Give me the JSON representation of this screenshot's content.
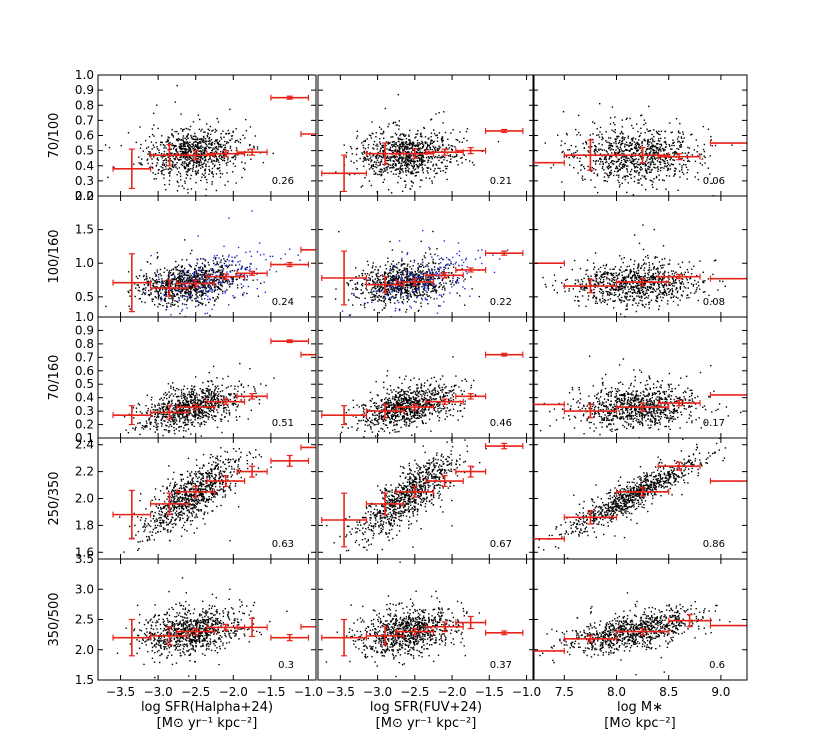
{
  "figure": {
    "colors": {
      "points": "#000000",
      "highlight_points": "#1f2fd6",
      "bins": "#e8241a"
    },
    "columns": [
      {
        "xlabel": "log SFR(Halpha+24)",
        "xunit": "[M⊙ yr⁻¹ kpc⁻²]"
      },
      {
        "xlabel": "log SFR(FUV+24)",
        "xunit": "[M⊙ yr⁻¹ kpc⁻²]"
      },
      {
        "xlabel": "log M∗",
        "xunit": "[M⊙ kpc⁻²]"
      }
    ]
  },
  "chart_data": [
    {
      "type": "scatter",
      "row_label": "70/100",
      "xlabel": "log SFR(Halpha+24)",
      "xlim": [
        -3.8,
        -0.9
      ],
      "ylabel": "70/100",
      "ylim": [
        0.2,
        1.0
      ],
      "yticks": [
        "0.2",
        "0.3",
        "0.4",
        "0.5",
        "0.6",
        "0.7",
        "0.8",
        "0.9",
        "1.0"
      ],
      "xticks": [
        "-3.5",
        "-3.0",
        "-2.5",
        "-2.0",
        "-1.5",
        "-1.0"
      ],
      "correlation": "0.26",
      "cloud": {
        "x_mean": -2.55,
        "x_sd": 0.33,
        "y_mean": 0.48,
        "y_sd": 0.08,
        "slope": 0.03,
        "n": 900
      },
      "binned": [
        {
          "x": -3.35,
          "xerr": 0.25,
          "y": 0.38,
          "yerr": 0.13
        },
        {
          "x": -2.85,
          "xerr": 0.25,
          "y": 0.47,
          "yerr": 0.07
        },
        {
          "x": -2.5,
          "xerr": 0.25,
          "y": 0.47,
          "yerr": 0.03
        },
        {
          "x": -2.1,
          "xerr": 0.25,
          "y": 0.48,
          "yerr": 0.02
        },
        {
          "x": -1.75,
          "xerr": 0.2,
          "y": 0.49,
          "yerr": 0.02
        },
        {
          "x": -1.25,
          "xerr": 0.25,
          "y": 0.85,
          "yerr": 0.01
        },
        {
          "x": -0.95,
          "xerr": 0.15,
          "y": 0.61,
          "yerr": 0.0
        }
      ]
    },
    {
      "type": "scatter",
      "row_label": "70/100",
      "xlabel": "log SFR(FUV+24)",
      "xlim": [
        -3.8,
        -0.9
      ],
      "ylabel": "70/100",
      "ylim": [
        0.2,
        1.0
      ],
      "correlation": "0.21",
      "cloud": {
        "x_mean": -2.6,
        "x_sd": 0.32,
        "y_mean": 0.47,
        "y_sd": 0.08,
        "slope": 0.02,
        "n": 900
      },
      "binned": [
        {
          "x": -3.45,
          "xerr": 0.3,
          "y": 0.35,
          "yerr": 0.12
        },
        {
          "x": -2.9,
          "xerr": 0.25,
          "y": 0.48,
          "yerr": 0.07
        },
        {
          "x": -2.5,
          "xerr": 0.25,
          "y": 0.48,
          "yerr": 0.03
        },
        {
          "x": -2.1,
          "xerr": 0.25,
          "y": 0.49,
          "yerr": 0.02
        },
        {
          "x": -1.75,
          "xerr": 0.2,
          "y": 0.5,
          "yerr": 0.02
        },
        {
          "x": -1.3,
          "xerr": 0.25,
          "y": 0.63,
          "yerr": 0.01
        }
      ]
    },
    {
      "type": "scatter",
      "row_label": "70/100",
      "xlabel": "log M∗",
      "xlim": [
        7.2,
        9.25
      ],
      "ylabel": "70/100",
      "ylim": [
        0.2,
        1.0
      ],
      "xticks": [
        "7.5",
        "8.0",
        "8.5",
        "9.0"
      ],
      "correlation": "0.06",
      "cloud": {
        "x_mean": 8.2,
        "x_sd": 0.3,
        "y_mean": 0.47,
        "y_sd": 0.09,
        "slope": 0.0,
        "n": 900
      },
      "binned": [
        {
          "x": 7.35,
          "xerr": 0.15,
          "y": 0.42,
          "yerr": 0.0
        },
        {
          "x": 7.75,
          "xerr": 0.25,
          "y": 0.47,
          "yerr": 0.1
        },
        {
          "x": 8.25,
          "xerr": 0.25,
          "y": 0.47,
          "yerr": 0.05
        },
        {
          "x": 8.6,
          "xerr": 0.2,
          "y": 0.46,
          "yerr": 0.02
        },
        {
          "x": 9.1,
          "xerr": 0.2,
          "y": 0.55,
          "yerr": 0.0
        }
      ]
    },
    {
      "type": "scatter",
      "row_label": "100/160",
      "xlabel": "log SFR(Halpha+24)",
      "xlim": [
        -3.8,
        -0.9
      ],
      "ylabel": "100/160",
      "ylim": [
        0.2,
        2.0
      ],
      "yticks": [
        "0.5",
        "1.0",
        "1.5",
        "2.0"
      ],
      "correlation": "0.24",
      "cloud": {
        "x_mean": -2.6,
        "x_sd": 0.33,
        "y_mean": 0.7,
        "y_sd": 0.14,
        "slope": 0.12,
        "n": 900
      },
      "highlight_cloud": {
        "x_mean": -2.3,
        "x_sd": 0.4,
        "y_mean": 0.75,
        "y_sd": 0.18,
        "slope": 0.35,
        "n": 220
      },
      "binned": [
        {
          "x": -3.35,
          "xerr": 0.25,
          "y": 0.71,
          "yerr": 0.43
        },
        {
          "x": -2.85,
          "xerr": 0.25,
          "y": 0.63,
          "yerr": 0.12
        },
        {
          "x": -2.5,
          "xerr": 0.25,
          "y": 0.7,
          "yerr": 0.05
        },
        {
          "x": -2.1,
          "xerr": 0.25,
          "y": 0.8,
          "yerr": 0.04
        },
        {
          "x": -1.75,
          "xerr": 0.2,
          "y": 0.85,
          "yerr": 0.03
        },
        {
          "x": -1.25,
          "xerr": 0.25,
          "y": 0.98,
          "yerr": 0.03
        },
        {
          "x": -0.95,
          "xerr": 0.15,
          "y": 1.2,
          "yerr": 0.0
        }
      ]
    },
    {
      "type": "scatter",
      "row_label": "100/160",
      "xlabel": "log SFR(FUV+24)",
      "xlim": [
        -3.8,
        -0.9
      ],
      "ylabel": "100/160",
      "ylim": [
        0.2,
        2.0
      ],
      "correlation": "0.22",
      "cloud": {
        "x_mean": -2.65,
        "x_sd": 0.32,
        "y_mean": 0.7,
        "y_sd": 0.14,
        "slope": 0.12,
        "n": 900
      },
      "highlight_cloud": {
        "x_mean": -2.35,
        "x_sd": 0.4,
        "y_mean": 0.75,
        "y_sd": 0.18,
        "slope": 0.35,
        "n": 220
      },
      "binned": [
        {
          "x": -3.45,
          "xerr": 0.3,
          "y": 0.78,
          "yerr": 0.4
        },
        {
          "x": -2.9,
          "xerr": 0.25,
          "y": 0.68,
          "yerr": 0.12
        },
        {
          "x": -2.5,
          "xerr": 0.25,
          "y": 0.72,
          "yerr": 0.05
        },
        {
          "x": -2.1,
          "xerr": 0.25,
          "y": 0.82,
          "yerr": 0.04
        },
        {
          "x": -1.75,
          "xerr": 0.2,
          "y": 0.9,
          "yerr": 0.03
        },
        {
          "x": -1.3,
          "xerr": 0.25,
          "y": 1.15,
          "yerr": 0.03
        }
      ]
    },
    {
      "type": "scatter",
      "row_label": "100/160",
      "xlabel": "log M∗",
      "xlim": [
        7.2,
        9.25
      ],
      "ylabel": "100/160",
      "ylim": [
        0.2,
        2.0
      ],
      "correlation": "0.08",
      "cloud": {
        "x_mean": 8.2,
        "x_sd": 0.3,
        "y_mean": 0.7,
        "y_sd": 0.15,
        "slope": 0.05,
        "n": 900
      },
      "binned": [
        {
          "x": 7.35,
          "xerr": 0.15,
          "y": 1.0,
          "yerr": 0.0
        },
        {
          "x": 7.75,
          "xerr": 0.25,
          "y": 0.66,
          "yerr": 0.1
        },
        {
          "x": 8.25,
          "xerr": 0.25,
          "y": 0.72,
          "yerr": 0.05
        },
        {
          "x": 8.6,
          "xerr": 0.2,
          "y": 0.8,
          "yerr": 0.03
        },
        {
          "x": 9.1,
          "xerr": 0.2,
          "y": 0.77,
          "yerr": 0.0
        }
      ]
    },
    {
      "type": "scatter",
      "row_label": "70/160",
      "xlabel": "log SFR(Halpha+24)",
      "xlim": [
        -3.8,
        -0.9
      ],
      "ylabel": "70/160",
      "ylim": [
        0.1,
        1.0
      ],
      "yticks": [
        "0.1",
        "0.2",
        "0.3",
        "0.4",
        "0.5",
        "0.6",
        "0.7",
        "0.8",
        "0.9",
        "1.0"
      ],
      "correlation": "0.51",
      "cloud": {
        "x_mean": -2.55,
        "x_sd": 0.33,
        "y_mean": 0.33,
        "y_sd": 0.07,
        "slope": 0.12,
        "n": 900
      },
      "binned": [
        {
          "x": -3.35,
          "xerr": 0.25,
          "y": 0.27,
          "yerr": 0.07
        },
        {
          "x": -2.85,
          "xerr": 0.25,
          "y": 0.29,
          "yerr": 0.05
        },
        {
          "x": -2.5,
          "xerr": 0.25,
          "y": 0.33,
          "yerr": 0.02
        },
        {
          "x": -2.1,
          "xerr": 0.25,
          "y": 0.37,
          "yerr": 0.02
        },
        {
          "x": -1.75,
          "xerr": 0.2,
          "y": 0.41,
          "yerr": 0.02
        },
        {
          "x": -1.25,
          "xerr": 0.25,
          "y": 0.82,
          "yerr": 0.01
        },
        {
          "x": -0.95,
          "xerr": 0.15,
          "y": 0.72,
          "yerr": 0.0
        }
      ]
    },
    {
      "type": "scatter",
      "row_label": "70/160",
      "xlabel": "log SFR(FUV+24)",
      "xlim": [
        -3.8,
        -0.9
      ],
      "ylabel": "70/160",
      "ylim": [
        0.1,
        1.0
      ],
      "correlation": "0.46",
      "cloud": {
        "x_mean": -2.6,
        "x_sd": 0.32,
        "y_mean": 0.33,
        "y_sd": 0.07,
        "slope": 0.12,
        "n": 900
      },
      "binned": [
        {
          "x": -3.45,
          "xerr": 0.3,
          "y": 0.27,
          "yerr": 0.07
        },
        {
          "x": -2.9,
          "xerr": 0.25,
          "y": 0.3,
          "yerr": 0.05
        },
        {
          "x": -2.5,
          "xerr": 0.25,
          "y": 0.33,
          "yerr": 0.02
        },
        {
          "x": -2.1,
          "xerr": 0.25,
          "y": 0.37,
          "yerr": 0.02
        },
        {
          "x": -1.75,
          "xerr": 0.2,
          "y": 0.41,
          "yerr": 0.02
        },
        {
          "x": -1.3,
          "xerr": 0.25,
          "y": 0.72,
          "yerr": 0.01
        }
      ]
    },
    {
      "type": "scatter",
      "row_label": "70/160",
      "xlabel": "log M∗",
      "xlim": [
        7.2,
        9.25
      ],
      "ylabel": "70/160",
      "ylim": [
        0.1,
        1.0
      ],
      "correlation": "0.17",
      "cloud": {
        "x_mean": 8.2,
        "x_sd": 0.3,
        "y_mean": 0.33,
        "y_sd": 0.08,
        "slope": 0.04,
        "n": 900
      },
      "binned": [
        {
          "x": 7.35,
          "xerr": 0.15,
          "y": 0.35,
          "yerr": 0.0
        },
        {
          "x": 7.75,
          "xerr": 0.25,
          "y": 0.3,
          "yerr": 0.05
        },
        {
          "x": 8.25,
          "xerr": 0.25,
          "y": 0.33,
          "yerr": 0.03
        },
        {
          "x": 8.6,
          "xerr": 0.2,
          "y": 0.36,
          "yerr": 0.02
        },
        {
          "x": 9.1,
          "xerr": 0.2,
          "y": 0.42,
          "yerr": 0.0
        }
      ]
    },
    {
      "type": "scatter",
      "row_label": "250/350",
      "xlabel": "log SFR(Halpha+24)",
      "xlim": [
        -3.8,
        -0.9
      ],
      "ylabel": "250/350",
      "ylim": [
        1.55,
        2.45
      ],
      "yticks": [
        "1.6",
        "1.8",
        "2.0",
        "2.2",
        "2.4"
      ],
      "correlation": "0.63",
      "cloud": {
        "x_mean": -2.55,
        "x_sd": 0.33,
        "y_mean": 2.02,
        "y_sd": 0.09,
        "slope": 0.35,
        "n": 900
      },
      "binned": [
        {
          "x": -3.35,
          "xerr": 0.25,
          "y": 1.88,
          "yerr": 0.18
        },
        {
          "x": -2.85,
          "xerr": 0.25,
          "y": 1.96,
          "yerr": 0.08
        },
        {
          "x": -2.5,
          "xerr": 0.25,
          "y": 2.05,
          "yerr": 0.04
        },
        {
          "x": -2.1,
          "xerr": 0.25,
          "y": 2.13,
          "yerr": 0.04
        },
        {
          "x": -1.75,
          "xerr": 0.2,
          "y": 2.2,
          "yerr": 0.04
        },
        {
          "x": -1.25,
          "xerr": 0.25,
          "y": 2.28,
          "yerr": 0.04
        },
        {
          "x": -0.95,
          "xerr": 0.15,
          "y": 2.38,
          "yerr": 0.0
        }
      ]
    },
    {
      "type": "scatter",
      "row_label": "250/350",
      "xlabel": "log SFR(FUV+24)",
      "xlim": [
        -3.8,
        -0.9
      ],
      "ylabel": "250/350",
      "ylim": [
        1.55,
        2.45
      ],
      "correlation": "0.67",
      "cloud": {
        "x_mean": -2.6,
        "x_sd": 0.32,
        "y_mean": 2.02,
        "y_sd": 0.09,
        "slope": 0.38,
        "n": 900
      },
      "binned": [
        {
          "x": -3.45,
          "xerr": 0.3,
          "y": 1.84,
          "yerr": 0.2
        },
        {
          "x": -2.9,
          "xerr": 0.25,
          "y": 1.96,
          "yerr": 0.08
        },
        {
          "x": -2.5,
          "xerr": 0.25,
          "y": 2.05,
          "yerr": 0.04
        },
        {
          "x": -2.1,
          "xerr": 0.25,
          "y": 2.13,
          "yerr": 0.04
        },
        {
          "x": -1.75,
          "xerr": 0.2,
          "y": 2.2,
          "yerr": 0.04
        },
        {
          "x": -1.3,
          "xerr": 0.25,
          "y": 2.39,
          "yerr": 0.02
        }
      ]
    },
    {
      "type": "scatter",
      "row_label": "250/350",
      "xlabel": "log M∗",
      "xlim": [
        7.2,
        9.25
      ],
      "ylabel": "250/350",
      "ylim": [
        1.55,
        2.45
      ],
      "correlation": "0.86",
      "cloud": {
        "x_mean": 8.15,
        "x_sd": 0.32,
        "y_mean": 2.02,
        "y_sd": 0.05,
        "slope": 0.42,
        "n": 900
      },
      "binned": [
        {
          "x": 7.35,
          "xerr": 0.15,
          "y": 1.7,
          "yerr": 0.0
        },
        {
          "x": 7.75,
          "xerr": 0.25,
          "y": 1.86,
          "yerr": 0.05
        },
        {
          "x": 8.25,
          "xerr": 0.25,
          "y": 2.05,
          "yerr": 0.03
        },
        {
          "x": 8.6,
          "xerr": 0.2,
          "y": 2.24,
          "yerr": 0.03
        },
        {
          "x": 9.1,
          "xerr": 0.2,
          "y": 2.13,
          "yerr": 0.0
        }
      ]
    },
    {
      "type": "scatter",
      "row_label": "350/500",
      "xlabel": "log SFR(Halpha+24)",
      "xlim": [
        -3.8,
        -0.9
      ],
      "ylabel": "350/500",
      "ylim": [
        1.5,
        3.5
      ],
      "yticks": [
        "1.5",
        "2.0",
        "2.5",
        "3.0",
        "3.5"
      ],
      "xticks": [
        "-3.5",
        "-3.0",
        "-2.5",
        "-2.0",
        "-1.5",
        "-1.0"
      ],
      "correlation": "0.3",
      "cloud": {
        "x_mean": -2.55,
        "x_sd": 0.33,
        "y_mean": 2.3,
        "y_sd": 0.18,
        "slope": 0.15,
        "n": 900
      },
      "binned": [
        {
          "x": -3.35,
          "xerr": 0.25,
          "y": 2.2,
          "yerr": 0.3
        },
        {
          "x": -2.85,
          "xerr": 0.25,
          "y": 2.23,
          "yerr": 0.15
        },
        {
          "x": -2.5,
          "xerr": 0.25,
          "y": 2.3,
          "yerr": 0.05
        },
        {
          "x": -2.1,
          "xerr": 0.25,
          "y": 2.37,
          "yerr": 0.05
        },
        {
          "x": -1.75,
          "xerr": 0.2,
          "y": 2.37,
          "yerr": 0.15
        },
        {
          "x": -1.25,
          "xerr": 0.25,
          "y": 2.2,
          "yerr": 0.05
        },
        {
          "x": -0.95,
          "xerr": 0.15,
          "y": 2.38,
          "yerr": 0.0
        }
      ]
    },
    {
      "type": "scatter",
      "row_label": "350/500",
      "xlabel": "log SFR(FUV+24)",
      "xlim": [
        -3.8,
        -0.9
      ],
      "ylabel": "350/500",
      "ylim": [
        1.5,
        3.5
      ],
      "xticks": [
        "-3.5",
        "-3.0",
        "-2.5",
        "-2.0",
        "-1.5",
        "-1.0"
      ],
      "correlation": "0.37",
      "cloud": {
        "x_mean": -2.6,
        "x_sd": 0.32,
        "y_mean": 2.3,
        "y_sd": 0.18,
        "slope": 0.18,
        "n": 900
      },
      "binned": [
        {
          "x": -3.45,
          "xerr": 0.3,
          "y": 2.2,
          "yerr": 0.3
        },
        {
          "x": -2.9,
          "xerr": 0.25,
          "y": 2.23,
          "yerr": 0.15
        },
        {
          "x": -2.5,
          "xerr": 0.25,
          "y": 2.3,
          "yerr": 0.05
        },
        {
          "x": -2.1,
          "xerr": 0.25,
          "y": 2.38,
          "yerr": 0.08
        },
        {
          "x": -1.75,
          "xerr": 0.2,
          "y": 2.45,
          "yerr": 0.1
        },
        {
          "x": -1.3,
          "xerr": 0.25,
          "y": 2.28,
          "yerr": 0.03
        }
      ]
    },
    {
      "type": "scatter",
      "row_label": "350/500",
      "xlabel": "log M∗",
      "xlim": [
        7.2,
        9.25
      ],
      "ylabel": "350/500",
      "ylim": [
        1.5,
        3.5
      ],
      "xticks": [
        "7.5",
        "8.0",
        "8.5",
        "9.0"
      ],
      "correlation": "0.6",
      "cloud": {
        "x_mean": 8.15,
        "x_sd": 0.32,
        "y_mean": 2.3,
        "y_sd": 0.14,
        "slope": 0.3,
        "n": 900
      },
      "binned": [
        {
          "x": 7.35,
          "xerr": 0.15,
          "y": 1.98,
          "yerr": 0.0
        },
        {
          "x": 7.75,
          "xerr": 0.25,
          "y": 2.18,
          "yerr": 0.05
        },
        {
          "x": 8.25,
          "xerr": 0.25,
          "y": 2.3,
          "yerr": 0.05
        },
        {
          "x": 8.7,
          "xerr": 0.2,
          "y": 2.48,
          "yerr": 0.1
        },
        {
          "x": 9.1,
          "xerr": 0.2,
          "y": 2.4,
          "yerr": 0.0
        }
      ]
    }
  ]
}
